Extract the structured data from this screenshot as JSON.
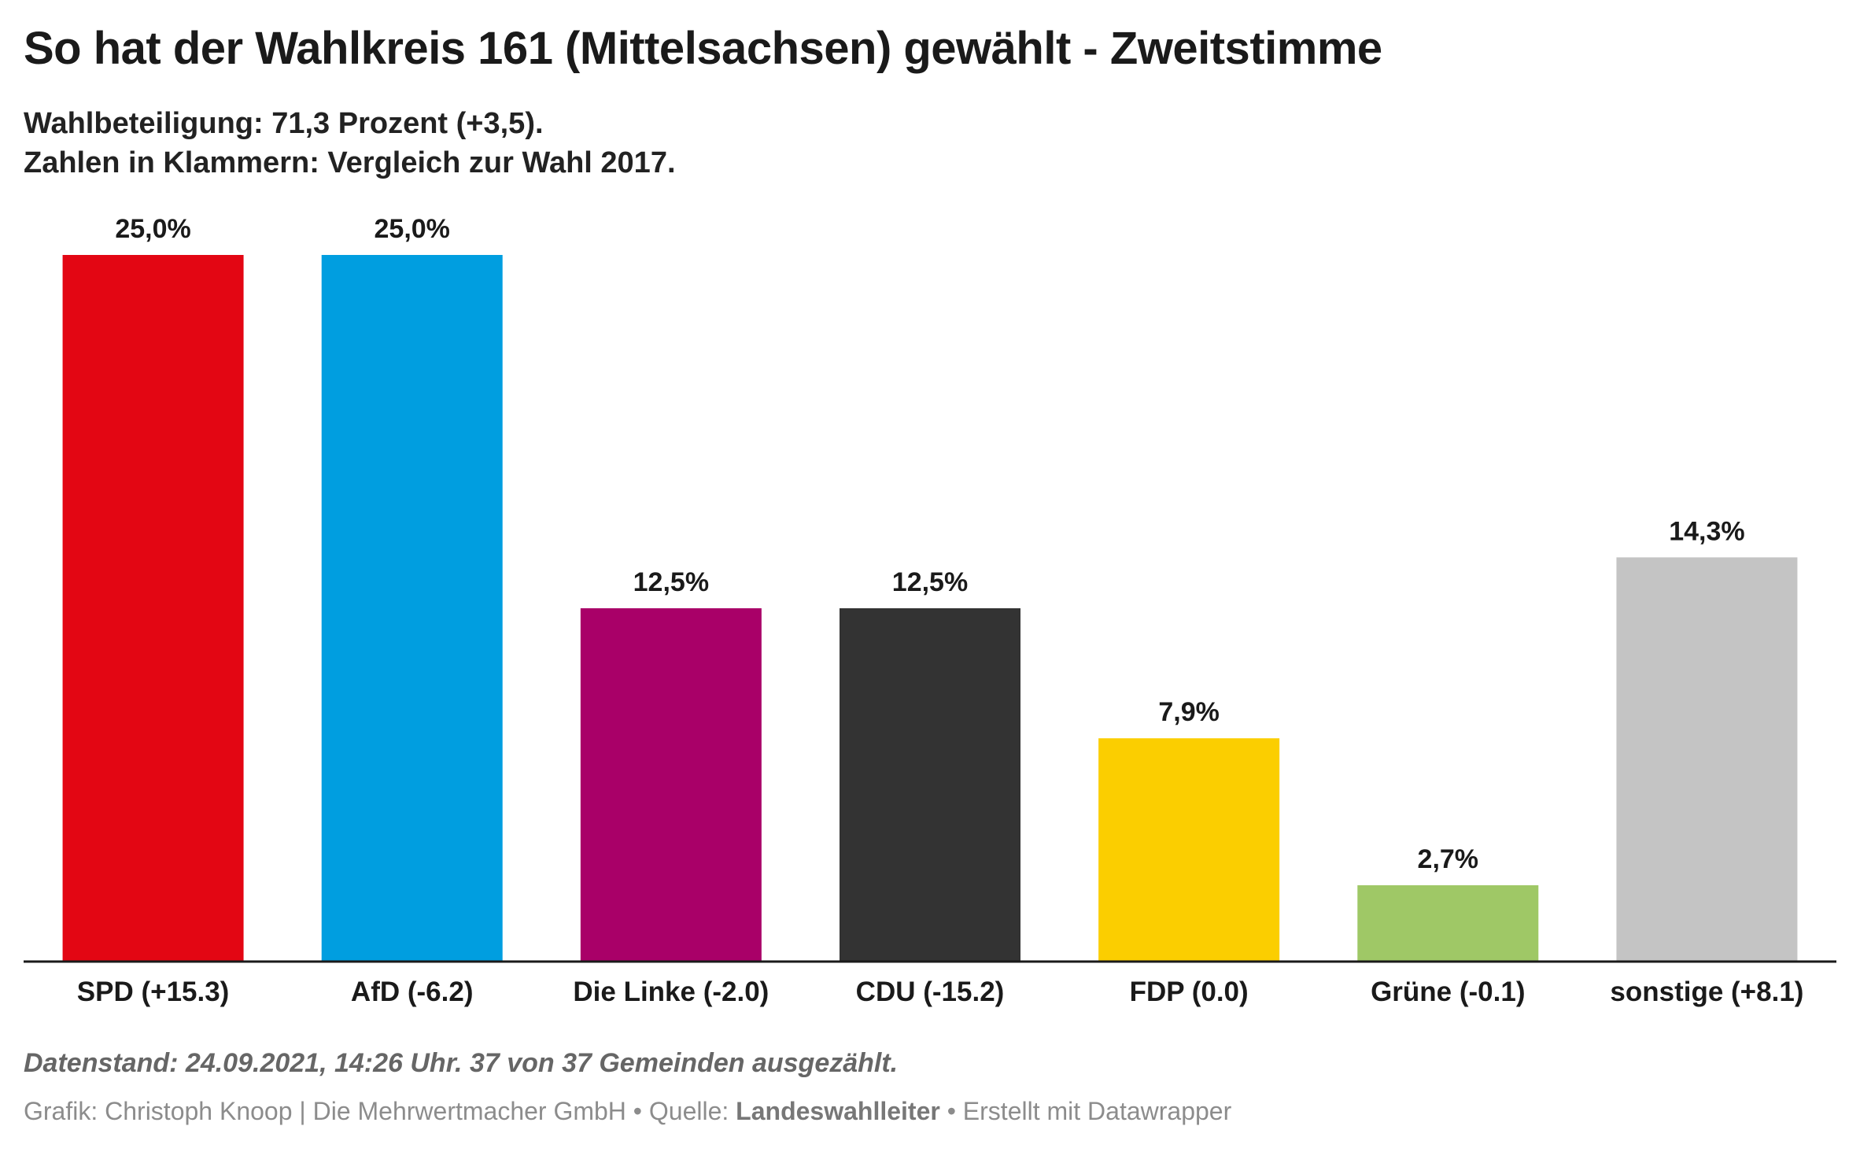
{
  "title": "So hat der Wahlkreis 161 (Mittelsachsen) gewählt - Zweitstimme",
  "subtitle_line1": "Wahlbeteiligung: 71,3 Prozent (+3,5).",
  "subtitle_line2": "Zahlen in Klammern: Vergleich zur Wahl 2017.",
  "notes": "Datenstand: 24.09.2021, 14:26 Uhr. 37 von 37 Gemeinden ausgezählt.",
  "footer": {
    "credit": "Grafik: Christoph Knoop | Die Mehrwertmacher GmbH",
    "separator": " • ",
    "source_label": "Quelle: ",
    "source_name": "Landeswahlleiter",
    "made_with": "Erstellt mit Datawrapper"
  },
  "chart_data": {
    "type": "bar",
    "categories": [
      "SPD (+15.3)",
      "AfD (-6.2)",
      "Die Linke (-2.0)",
      "CDU (-15.2)",
      "FDP (0.0)",
      "Grüne (-0.1)",
      "sonstige (+8.1)"
    ],
    "values": [
      25.0,
      25.0,
      12.5,
      12.5,
      7.9,
      2.7,
      14.3
    ],
    "value_labels": [
      "25,0%",
      "25,0%",
      "12,5%",
      "12,5%",
      "7,9%",
      "2,7%",
      "14,3%"
    ],
    "colors": [
      "#e30613",
      "#009ee0",
      "#a90068",
      "#333333",
      "#fbce00",
      "#9fc866",
      "#c4c4c4"
    ],
    "ylim": [
      0,
      25
    ],
    "grid": false,
    "xlabel": "",
    "ylabel": ""
  }
}
